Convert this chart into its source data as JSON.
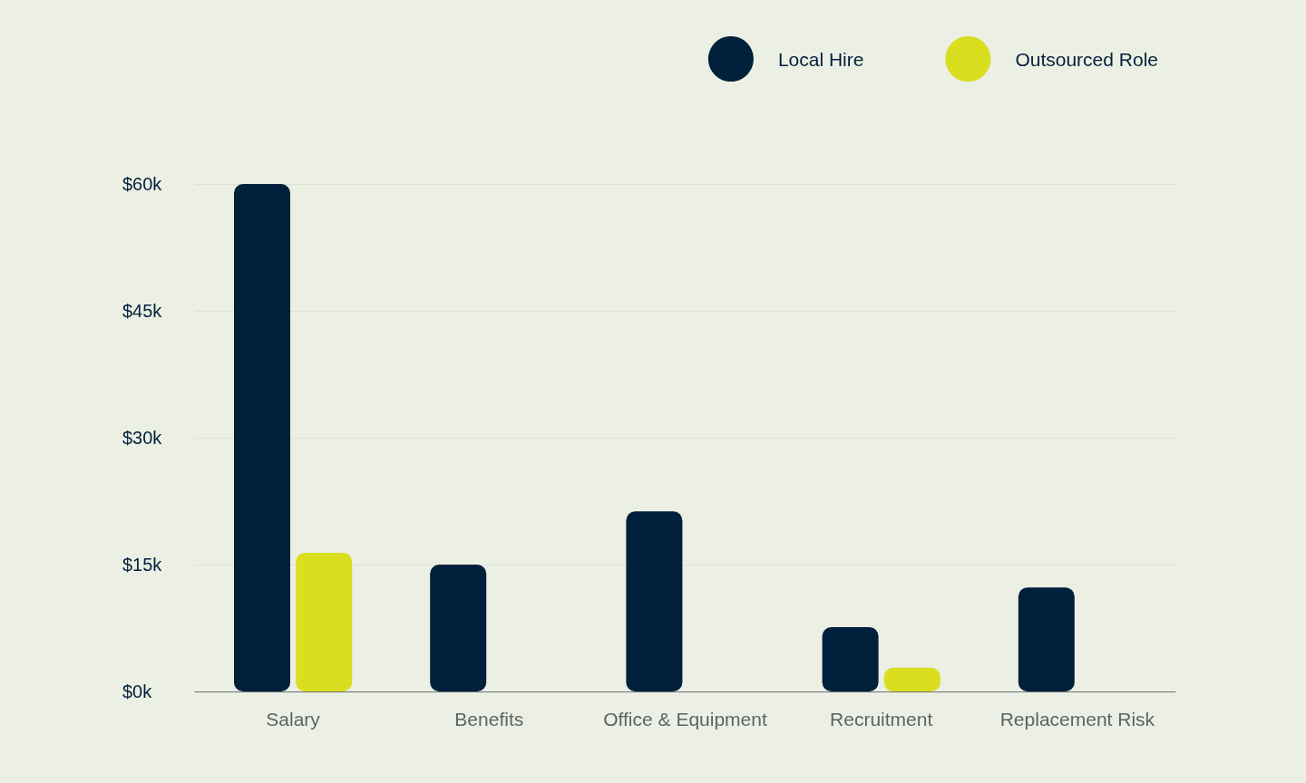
{
  "chart_data": {
    "type": "bar",
    "categories": [
      "Salary",
      "Benefits",
      "Office & Equipment",
      "Recruitment",
      "Replacement Risk"
    ],
    "series": [
      {
        "name": "Local Hire",
        "color": "#00203b",
        "values": [
          60,
          15,
          21.3,
          7.6,
          12.3
        ]
      },
      {
        "name": "Outsourced Role",
        "color": "#d9de1f",
        "values": [
          16.4,
          null,
          null,
          2.8,
          null
        ]
      }
    ],
    "ylim": [
      0,
      60
    ],
    "yticks": [
      {
        "value": 0,
        "label": "$0k"
      },
      {
        "value": 15,
        "label": "$15k"
      },
      {
        "value": 30,
        "label": "$30k"
      },
      {
        "value": 45,
        "label": "$45k"
      },
      {
        "value": 60,
        "label": "$60k"
      }
    ],
    "grid": "y",
    "legend": "top right"
  }
}
